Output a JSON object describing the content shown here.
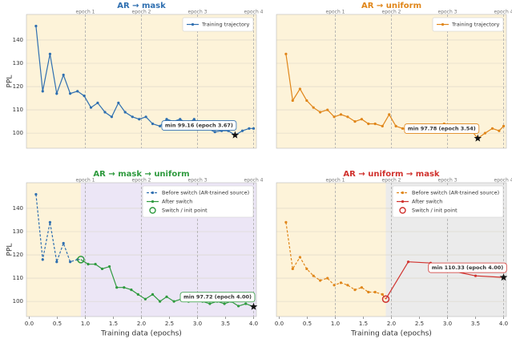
{
  "chart_data": [
    {
      "type": "line",
      "title": "AR → mask",
      "title_color": "#2f6fb0",
      "ylabel": "PPL",
      "xlim": [
        -0.05,
        4.05
      ],
      "ylim": [
        93.5,
        151
      ],
      "yticks": [
        100,
        110,
        120,
        130,
        140
      ],
      "epochs": [
        {
          "value": 1,
          "label": "epoch 1"
        },
        {
          "value": 2,
          "label": "epoch 2"
        },
        {
          "value": 3,
          "label": "epoch 3"
        },
        {
          "value": 4,
          "label": "epoch 4"
        }
      ],
      "background": "#fdf3d9",
      "legend": "upper right",
      "annotation": "min 99.16 (epoch 3.67)",
      "series": [
        {
          "name": "Training trajectory",
          "color": "#2f6fb0",
          "dashed": false,
          "x": [
            0.12,
            0.24,
            0.37,
            0.49,
            0.61,
            0.73,
            0.86,
            0.98,
            1.1,
            1.22,
            1.35,
            1.47,
            1.59,
            1.71,
            1.84,
            1.96,
            2.08,
            2.2,
            2.33,
            2.45,
            2.57,
            2.69,
            2.82,
            2.94,
            3.06,
            3.18,
            3.31,
            3.43,
            3.55,
            3.67,
            3.8,
            3.92,
            4.0
          ],
          "values": [
            146,
            118,
            134,
            117,
            125,
            117,
            118,
            116,
            111,
            113,
            109,
            107,
            113,
            109,
            107,
            106,
            107,
            104,
            103,
            106,
            105,
            106,
            104,
            106,
            103,
            102,
            100.5,
            101,
            101,
            99.16,
            101,
            102,
            102
          ]
        }
      ]
    },
    {
      "type": "line",
      "title": "AR → uniform",
      "title_color": "#e0861a",
      "xlim": [
        -0.05,
        4.05
      ],
      "ylim": [
        93.5,
        151
      ],
      "yticks": [
        100,
        110,
        120,
        130,
        140
      ],
      "epochs": [
        {
          "value": 1,
          "label": "epoch 1"
        },
        {
          "value": 2,
          "label": "epoch 2"
        },
        {
          "value": 3,
          "label": "epoch 3"
        },
        {
          "value": 4,
          "label": "epoch 4"
        }
      ],
      "background": "#fdf3d9",
      "legend": "upper right",
      "annotation": "min 97.78 (epoch 3.54)",
      "series": [
        {
          "name": "Training trajectory",
          "color": "#e0861a",
          "dashed": false,
          "x": [
            0.12,
            0.24,
            0.37,
            0.49,
            0.61,
            0.73,
            0.86,
            0.98,
            1.1,
            1.22,
            1.35,
            1.47,
            1.59,
            1.71,
            1.84,
            1.96,
            2.08,
            2.2,
            2.33,
            2.45,
            2.57,
            2.69,
            2.82,
            2.94,
            3.06,
            3.18,
            3.31,
            3.43,
            3.54,
            3.67,
            3.8,
            3.92,
            4.0
          ],
          "values": [
            134,
            114,
            119,
            114,
            111,
            109,
            110,
            107,
            108,
            107,
            105,
            106,
            104,
            104,
            103,
            108,
            103,
            102,
            101,
            102,
            103,
            103,
            102,
            104,
            102,
            101,
            102,
            101,
            97.78,
            100,
            102,
            101,
            103
          ]
        }
      ]
    },
    {
      "type": "line",
      "title": "AR → mask → uniform",
      "title_color": "#2e9a3e",
      "ylabel": "PPL",
      "xlabel": "Training data (epochs)",
      "xlim": [
        -0.05,
        4.05
      ],
      "ylim": [
        93.5,
        151
      ],
      "yticks": [
        100,
        110,
        120,
        130,
        140
      ],
      "xticks": [
        {
          "value": 0,
          "label": "0.0"
        },
        {
          "value": 0.5,
          "label": "0.5"
        },
        {
          "value": 1,
          "label": "1.0"
        },
        {
          "value": 1.5,
          "label": "1.5"
        },
        {
          "value": 2,
          "label": "2.0"
        },
        {
          "value": 2.5,
          "label": "2.5"
        },
        {
          "value": 3,
          "label": "3.0"
        },
        {
          "value": 3.5,
          "label": "3.5"
        },
        {
          "value": 4,
          "label": "4.0"
        }
      ],
      "epochs": [
        {
          "value": 1,
          "label": "epoch 1"
        },
        {
          "value": 2,
          "label": "epoch 2"
        },
        {
          "value": 3,
          "label": "epoch 3"
        },
        {
          "value": 4,
          "label": "epoch 4"
        }
      ],
      "background": "#fdf3d9",
      "after_background": "#ece6f6",
      "legend": "upper right",
      "annotation": "min 97.72 (epoch 4.00)",
      "switch": {
        "name": "Switch / init point",
        "x": 0.92,
        "y": 118,
        "color": "#2e9a3e"
      },
      "series": [
        {
          "name": "Before switch (AR-trained source)",
          "color": "#2f6fb0",
          "dashed": true,
          "x": [
            0.12,
            0.24,
            0.37,
            0.49,
            0.61,
            0.73,
            0.86
          ],
          "values": [
            146,
            118,
            134,
            117,
            125,
            117,
            118
          ]
        },
        {
          "name": "After switch",
          "color": "#2e9a3e",
          "dashed": false,
          "x": [
            1.05,
            1.18,
            1.3,
            1.43,
            1.56,
            1.69,
            1.82,
            1.94,
            2.07,
            2.2,
            2.33,
            2.45,
            2.58,
            2.71,
            2.84,
            2.96,
            3.09,
            3.22,
            3.35,
            3.48,
            3.6,
            3.73,
            3.86,
            4.0
          ],
          "values": [
            116,
            116,
            114,
            115,
            106,
            106,
            105,
            103,
            101,
            103,
            100,
            102,
            100,
            101,
            100,
            101,
            100,
            99,
            100,
            99,
            100,
            98,
            99,
            97.72
          ]
        }
      ]
    },
    {
      "type": "line",
      "title": "AR → uniform → mask",
      "title_color": "#d0312d",
      "xlabel": "Training data (epochs)",
      "xlim": [
        -0.05,
        4.05
      ],
      "ylim": [
        93.5,
        151
      ],
      "yticks": [
        100,
        110,
        120,
        130,
        140
      ],
      "xticks": [
        {
          "value": 0,
          "label": "0.0"
        },
        {
          "value": 0.5,
          "label": "0.5"
        },
        {
          "value": 1,
          "label": "1.0"
        },
        {
          "value": 1.5,
          "label": "1.5"
        },
        {
          "value": 2,
          "label": "2.0"
        },
        {
          "value": 2.5,
          "label": "2.5"
        },
        {
          "value": 3,
          "label": "3.0"
        },
        {
          "value": 3.5,
          "label": "3.5"
        },
        {
          "value": 4,
          "label": "4.0"
        }
      ],
      "epochs": [
        {
          "value": 1,
          "label": "epoch 1"
        },
        {
          "value": 2,
          "label": "epoch 2"
        },
        {
          "value": 3,
          "label": "epoch 3"
        },
        {
          "value": 4,
          "label": "epoch 4"
        }
      ],
      "background": "#fdf3d9",
      "after_background": "#ebebeb",
      "legend": "upper right",
      "annotation": "min 110.33 (epoch 4.00)",
      "switch": {
        "name": "Switch / init point",
        "x": 1.9,
        "y": 101,
        "color": "#d0312d"
      },
      "series": [
        {
          "name": "Before switch (AR-trained source)",
          "color": "#e0861a",
          "dashed": true,
          "x": [
            0.12,
            0.24,
            0.37,
            0.49,
            0.61,
            0.73,
            0.86,
            0.98,
            1.1,
            1.22,
            1.35,
            1.47,
            1.59,
            1.71,
            1.84
          ],
          "values": [
            134,
            114,
            119,
            114,
            111,
            109,
            110,
            107,
            108,
            107,
            105,
            106,
            104,
            104,
            103
          ]
        },
        {
          "name": "After switch",
          "color": "#d0312d",
          "dashed": false,
          "x": [
            2.3,
            2.7,
            3.1,
            3.5,
            4.0
          ],
          "values": [
            117,
            116.5,
            113,
            111,
            110.33
          ]
        }
      ]
    }
  ]
}
